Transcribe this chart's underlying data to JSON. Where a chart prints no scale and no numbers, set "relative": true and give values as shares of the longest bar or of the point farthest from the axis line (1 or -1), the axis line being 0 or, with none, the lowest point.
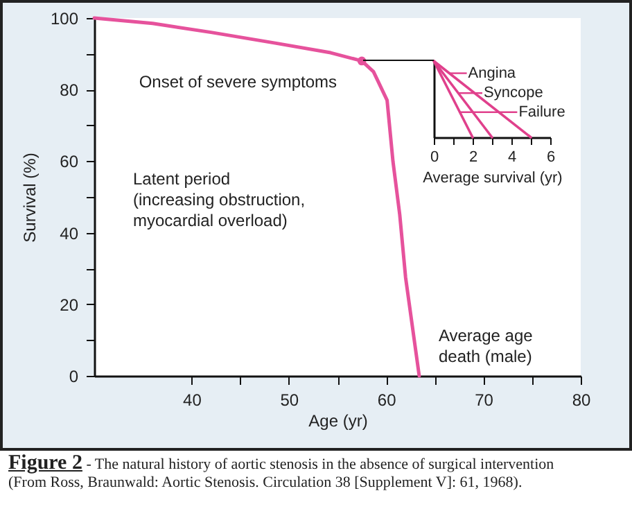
{
  "chart_data": [
    {
      "type": "line",
      "title": "Figure 2",
      "subtitle": "- The natural history of aortic stenosis in the absence of surgical intervention",
      "xlabel": "Age (yr)",
      "ylabel": "Survival (%)",
      "x": [
        30,
        36,
        42,
        48.6,
        54.3,
        57.5,
        58.7,
        60.1,
        60.7,
        61.4,
        62,
        63.4
      ],
      "series": [
        {
          "color": "#e6529c",
          "values": [
            100,
            98.5,
            96,
            93,
            90.3,
            88,
            85,
            77,
            60,
            45,
            27.5,
            0
          ]
        }
      ],
      "xlim": [
        30,
        80
      ],
      "xticks": [
        40,
        {
          "value": 45,
          "label": null
        },
        50,
        {
          "value": 55,
          "label": null
        },
        60,
        {
          "value": 65,
          "label": null
        },
        70,
        {
          "value": 75,
          "label": null
        },
        80
      ],
      "ylim": [
        0,
        100
      ],
      "yticks": [
        0,
        {
          "value": 10,
          "label": null
        },
        20,
        {
          "value": 30,
          "label": null
        },
        40,
        {
          "value": 50,
          "label": null
        },
        60,
        {
          "value": 70,
          "label": null
        },
        80,
        {
          "value": 90,
          "label": null
        },
        100
      ],
      "grid": false,
      "annotations": [
        {
          "text": "Onset of severe symptoms",
          "x": 57.5,
          "y": 88
        },
        {
          "text": "Average age\ndeath (male)",
          "x": 63.4,
          "y": 0
        },
        "Latent period\n(increasing obstruction,\nmyocardial overload)",
        "(From Ross, Braunwald: Aortic Stenosis. Circulation 38 [Supplement V]: 61, 1968)."
      ]
    },
    {
      "type": "line",
      "xlabel": "Average survival (yr)",
      "relative": true,
      "grid": false,
      "legend": "top right",
      "xlim": [
        0,
        6
      ],
      "xticks": [
        0,
        {
          "value": 1,
          "label": null
        },
        2,
        {
          "value": 3,
          "label": null
        },
        4,
        {
          "value": 5,
          "label": null
        },
        6
      ],
      "series": [
        {
          "name": "Angina",
          "color": "#e0408c",
          "x": [
            0,
            5
          ],
          "values": [
            1,
            0
          ]
        },
        {
          "name": "Syncope",
          "color": "#e0408c",
          "x": [
            0,
            3
          ],
          "values": [
            1,
            0
          ]
        },
        {
          "name": "Failure",
          "color": "#e0408c",
          "x": [
            0,
            2
          ],
          "values": [
            1,
            0
          ]
        }
      ]
    }
  ]
}
